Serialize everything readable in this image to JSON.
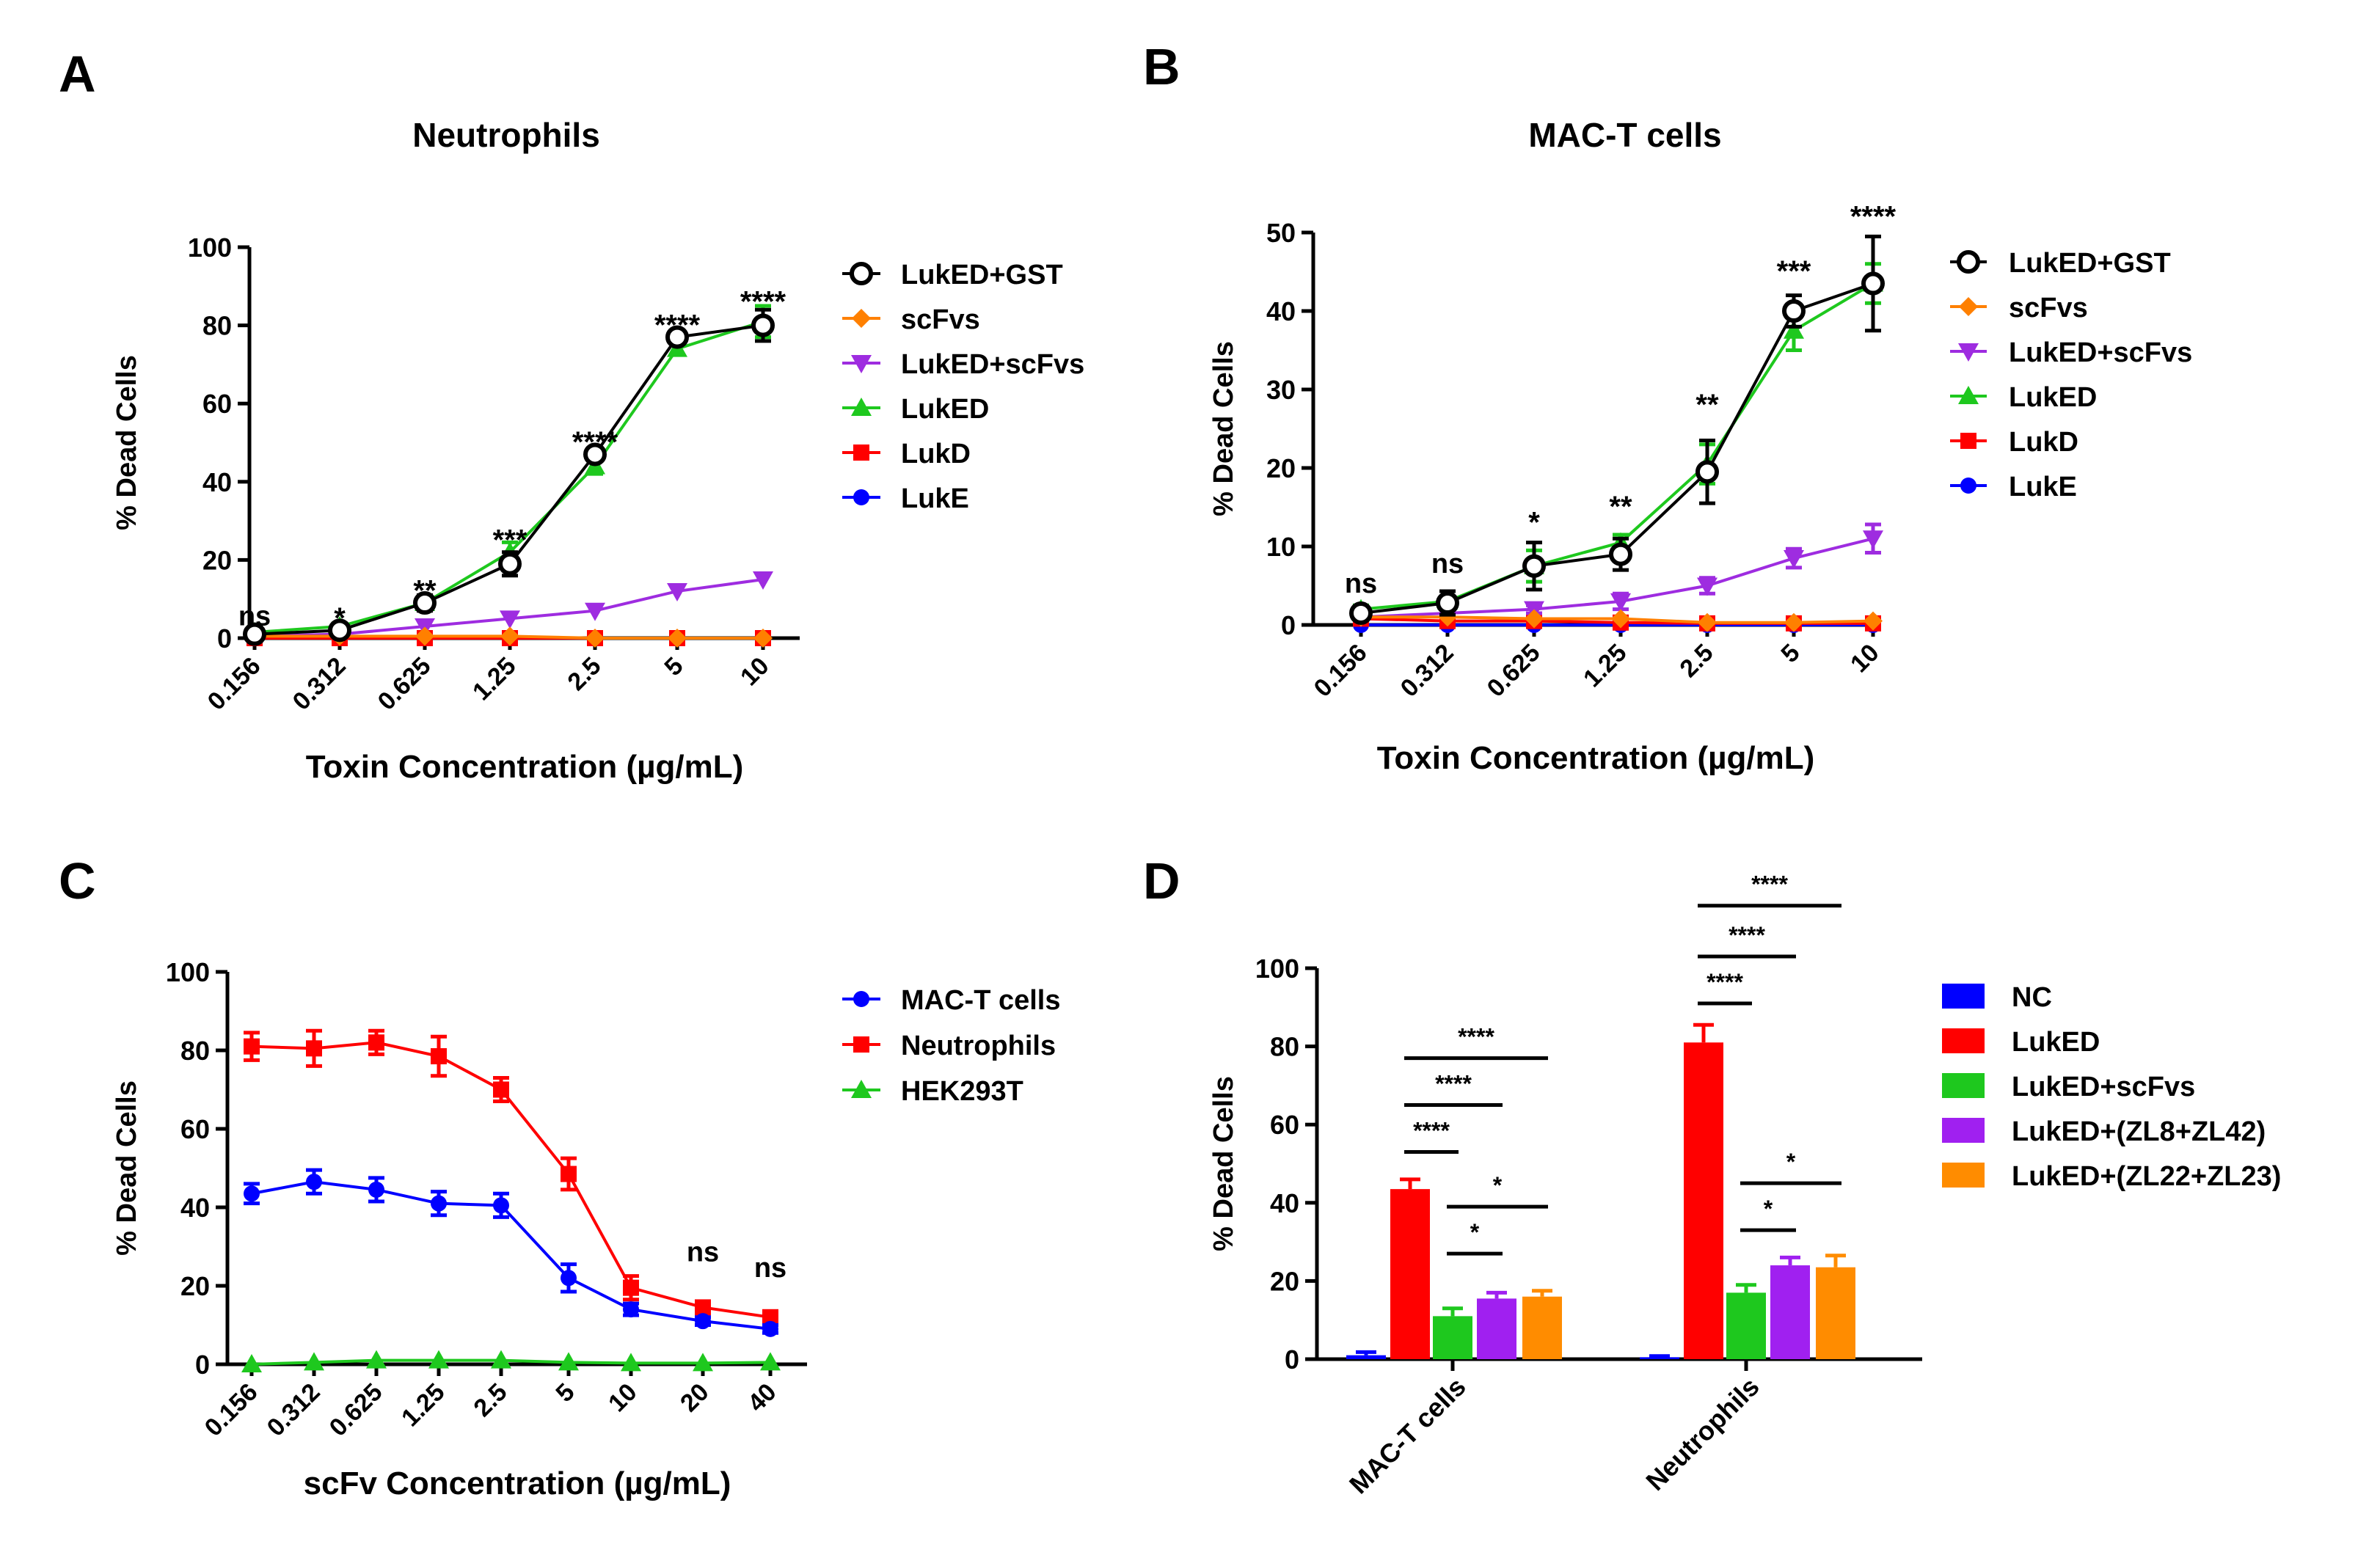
{
  "panels": [
    {
      "letter": "A",
      "title": "Neutrophils",
      "chart_data": {
        "type": "line",
        "title": "Neutrophils",
        "xlabel": "Toxin Concentration (µg/mL)",
        "ylabel": "% Dead Cells",
        "ylim": [
          0,
          100
        ],
        "yticks": [
          "0",
          "20",
          "40",
          "60",
          "80",
          "100"
        ],
        "categories": [
          "0.156",
          "0.312",
          "0.625",
          "1.25",
          "2.5",
          "5",
          "10"
        ],
        "series": [
          {
            "name": "LukED+GST",
            "color": "#000000",
            "marker": "open-circle",
            "values": [
              1,
              2,
              9,
              19,
              47,
              77,
              80
            ],
            "errors": [
              0.5,
              0.5,
              2,
              3,
              1.5,
              1.5,
              4
            ]
          },
          {
            "name": "scFvs",
            "color": "#ff8000",
            "marker": "diamond",
            "values": [
              0.5,
              0.5,
              0.5,
              0.5,
              0,
              0,
              0
            ],
            "errors": [
              0,
              0,
              0,
              0,
              0,
              0,
              0
            ]
          },
          {
            "name": "LukED+scFvs",
            "color": "#9e2ce0",
            "marker": "triangle-down",
            "values": [
              0.5,
              1,
              3,
              5,
              7,
              12,
              15
            ],
            "errors": [
              0,
              0,
              0,
              0,
              0,
              0,
              0
            ]
          },
          {
            "name": "LukED",
            "color": "#1ec81e",
            "marker": "triangle-up",
            "values": [
              1.5,
              3,
              9,
              22,
              44,
              74,
              81
            ],
            "errors": [
              0.5,
              0.8,
              1.5,
              2.5,
              2,
              1.5,
              4
            ]
          },
          {
            "name": "LukD",
            "color": "#ff0000",
            "marker": "square",
            "values": [
              0,
              0,
              0,
              0,
              0,
              0,
              0
            ],
            "errors": [
              0,
              0,
              0,
              0,
              0,
              0,
              0
            ]
          },
          {
            "name": "LukE",
            "color": "#0000ff",
            "marker": "circle",
            "values": [
              0,
              0,
              0,
              0,
              0,
              0,
              0
            ],
            "errors": [
              0,
              0,
              0,
              0,
              0,
              0,
              0
            ]
          }
        ],
        "annotations": [
          {
            "category": "0.156",
            "y": 1,
            "text": "ns"
          },
          {
            "category": "0.312",
            "y": 3,
            "text": "*"
          },
          {
            "category": "0.625",
            "y": 10,
            "text": "**"
          },
          {
            "category": "1.25",
            "y": 23,
            "text": "***"
          },
          {
            "category": "2.5",
            "y": 48,
            "text": "****"
          },
          {
            "category": "5",
            "y": 78,
            "text": "****"
          },
          {
            "category": "10",
            "y": 84,
            "text": "****"
          }
        ]
      }
    },
    {
      "letter": "B",
      "title": "MAC-T cells",
      "chart_data": {
        "type": "line",
        "title": "MAC-T cells",
        "xlabel": "Toxin Concentration (µg/mL)",
        "ylabel": "% Dead Cells",
        "ylim": [
          0,
          50
        ],
        "yticks": [
          "0",
          "10",
          "20",
          "30",
          "40",
          "50"
        ],
        "categories": [
          "0.156",
          "0.312",
          "0.625",
          "1.25",
          "2.5",
          "5",
          "10"
        ],
        "series": [
          {
            "name": "LukED+GST",
            "color": "#000000",
            "marker": "open-circle",
            "values": [
              1.5,
              2.8,
              7.5,
              9,
              19.5,
              40,
              43.5
            ],
            "errors": [
              0.5,
              1.5,
              3,
              2,
              4,
              2,
              6
            ]
          },
          {
            "name": "scFvs",
            "color": "#ff8000",
            "marker": "diamond",
            "values": [
              1,
              1,
              0.8,
              0.8,
              0.3,
              0.3,
              0.5
            ],
            "errors": [
              0,
              0,
              0,
              0,
              0,
              0,
              0
            ]
          },
          {
            "name": "LukED+scFvs",
            "color": "#9e2ce0",
            "marker": "triangle-down",
            "values": [
              1,
              1.5,
              2,
              3,
              5,
              8.5,
              11
            ],
            "errors": [
              0,
              0,
              0.5,
              1,
              1,
              1.2,
              1.8
            ]
          },
          {
            "name": "LukED",
            "color": "#1ec81e",
            "marker": "triangle-up",
            "values": [
              2,
              3,
              7.5,
              10.5,
              20.5,
              37.5,
              43.5
            ],
            "errors": [
              0.5,
              0.5,
              2,
              1,
              2.5,
              2.5,
              2.5
            ]
          },
          {
            "name": "LukD",
            "color": "#ff0000",
            "marker": "square",
            "values": [
              0.8,
              0.5,
              0.5,
              0.3,
              0.2,
              0.2,
              0.2
            ],
            "errors": [
              0,
              0,
              0,
              0,
              0,
              0,
              0
            ]
          },
          {
            "name": "LukE",
            "color": "#0000ff",
            "marker": "circle",
            "values": [
              0,
              0,
              0,
              0,
              0,
              0,
              0
            ],
            "errors": [
              0,
              0,
              0,
              0,
              0,
              0,
              0
            ]
          }
        ],
        "annotations": [
          {
            "category": "0.156",
            "y": 3,
            "text": "ns"
          },
          {
            "category": "0.312",
            "y": 5.5,
            "text": "ns"
          },
          {
            "category": "0.625",
            "y": 12,
            "text": "*"
          },
          {
            "category": "1.25",
            "y": 14,
            "text": "**"
          },
          {
            "category": "2.5",
            "y": 27,
            "text": "**"
          },
          {
            "category": "5",
            "y": 44,
            "text": "***"
          },
          {
            "category": "10",
            "y": 51,
            "text": "****"
          }
        ]
      }
    },
    {
      "letter": "C",
      "title": "",
      "chart_data": {
        "type": "line",
        "title": "",
        "xlabel": "scFv Concentration (µg/mL)",
        "ylabel": "% Dead Cells",
        "ylim": [
          0,
          100
        ],
        "yticks": [
          "0",
          "20",
          "40",
          "60",
          "80",
          "100"
        ],
        "categories": [
          "0.156",
          "0.312",
          "0.625",
          "1.25",
          "2.5",
          "5",
          "10",
          "20",
          "40"
        ],
        "series": [
          {
            "name": "MAC-T cells",
            "color": "#0000ff",
            "marker": "circle",
            "values": [
              43.5,
              46.5,
              44.5,
              41,
              40.5,
              22,
              14,
              11,
              9
            ],
            "errors": [
              2.5,
              3,
              3,
              3,
              3,
              3.5,
              1.5,
              1,
              1
            ]
          },
          {
            "name": "Neutrophils",
            "color": "#ff0000",
            "marker": "square",
            "values": [
              81,
              80.5,
              82,
              78.5,
              70,
              48.5,
              19.5,
              14.5,
              12
            ],
            "errors": [
              3.5,
              4.5,
              3,
              5,
              3,
              4,
              3,
              1.5,
              1
            ]
          },
          {
            "name": "HEK293T",
            "color": "#1ec81e",
            "marker": "triangle-up",
            "values": [
              0,
              0.5,
              1,
              1,
              1,
              0.5,
              0.3,
              0.3,
              0.5
            ],
            "errors": [
              0,
              0,
              0,
              0,
              0,
              0,
              0,
              0,
              0
            ]
          }
        ],
        "annotations": [
          {
            "category": "20",
            "y": 24,
            "text": "ns"
          },
          {
            "category": "40",
            "y": 20,
            "text": "ns"
          }
        ]
      }
    },
    {
      "letter": "D",
      "title": "",
      "chart_data": {
        "type": "bar",
        "title": "",
        "xlabel": "",
        "ylabel": "% Dead Cells",
        "ylim": [
          0,
          100
        ],
        "yticks": [
          "0",
          "20",
          "40",
          "60",
          "80",
          "100"
        ],
        "categories": [
          "MAC-T cells",
          "Neutrophils"
        ],
        "series": [
          {
            "name": "NC",
            "color": "#0000ff",
            "values": [
              1,
              0.5
            ],
            "errors": [
              0.8,
              0.3
            ]
          },
          {
            "name": "LukED",
            "color": "#ff0000",
            "values": [
              43.5,
              81
            ],
            "errors": [
              2.5,
              4.5
            ]
          },
          {
            "name": "LukED+scFvs",
            "color": "#1ec81e",
            "values": [
              11,
              17
            ],
            "errors": [
              2,
              2
            ]
          },
          {
            "name": "LukED+(ZL8+ZL42)",
            "color": "#a020f0",
            "values": [
              15.5,
              24
            ],
            "errors": [
              1.5,
              2
            ]
          },
          {
            "name": "LukED+(ZL22+ZL23)",
            "color": "#ff8c00",
            "values": [
              16,
              23.5
            ],
            "errors": [
              1.5,
              3
            ]
          }
        ],
        "significance": [
          {
            "category": "MAC-T cells",
            "from": "LukED",
            "to": "LukED+scFvs",
            "y": 53,
            "text": "****"
          },
          {
            "category": "MAC-T cells",
            "from": "LukED",
            "to": "LukED+(ZL8+ZL42)",
            "y": 65,
            "text": "****"
          },
          {
            "category": "MAC-T cells",
            "from": "LukED",
            "to": "LukED+(ZL22+ZL23)",
            "y": 77,
            "text": "****"
          },
          {
            "category": "MAC-T cells",
            "from": "LukED+scFvs",
            "to": "LukED+(ZL8+ZL42)",
            "y": 27,
            "text": "*"
          },
          {
            "category": "MAC-T cells",
            "from": "LukED+scFvs",
            "to": "LukED+(ZL22+ZL23)",
            "y": 39,
            "text": "*"
          },
          {
            "category": "Neutrophils",
            "from": "LukED",
            "to": "LukED+scFvs",
            "y": 91,
            "text": "****"
          },
          {
            "category": "Neutrophils",
            "from": "LukED",
            "to": "LukED+(ZL8+ZL42)",
            "y": 103,
            "text": "****"
          },
          {
            "category": "Neutrophils",
            "from": "LukED",
            "to": "LukED+(ZL22+ZL23)",
            "y": 116,
            "text": "****"
          },
          {
            "category": "Neutrophils",
            "from": "LukED+scFvs",
            "to": "LukED+(ZL8+ZL42)",
            "y": 33,
            "text": "*"
          },
          {
            "category": "Neutrophils",
            "from": "LukED+scFvs",
            "to": "LukED+(ZL22+ZL23)",
            "y": 45,
            "text": "*"
          }
        ]
      }
    }
  ]
}
